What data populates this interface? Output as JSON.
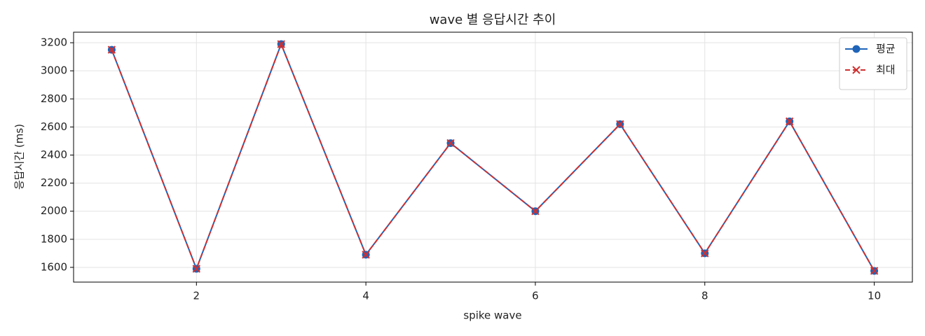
{
  "chart_data": {
    "type": "line",
    "title": "wave 별 응답시간 추이",
    "xlabel": "spike wave",
    "ylabel": "응답시간 (ms)",
    "x": [
      1,
      2,
      3,
      4,
      5,
      6,
      7,
      8,
      9,
      10
    ],
    "series": [
      {
        "name": "평균",
        "color": "#1f64b9",
        "marker": "circle",
        "dash": false,
        "values": [
          3150,
          1590,
          3190,
          1690,
          2485,
          2000,
          2620,
          1700,
          2640,
          1575
        ]
      },
      {
        "name": "최대",
        "color": "#d03030",
        "marker": "cross",
        "dash": true,
        "values": [
          3150,
          1590,
          3190,
          1690,
          2485,
          2000,
          2620,
          1700,
          2640,
          1575
        ]
      }
    ],
    "xlim": [
      0.55,
      10.45
    ],
    "xticks": [
      2,
      4,
      6,
      8,
      10
    ],
    "ylim": [
      1495,
      3275
    ],
    "yticks": [
      1600,
      1800,
      2000,
      2200,
      2400,
      2600,
      2800,
      3000,
      3200
    ],
    "grid": true,
    "legend": "upper right"
  }
}
